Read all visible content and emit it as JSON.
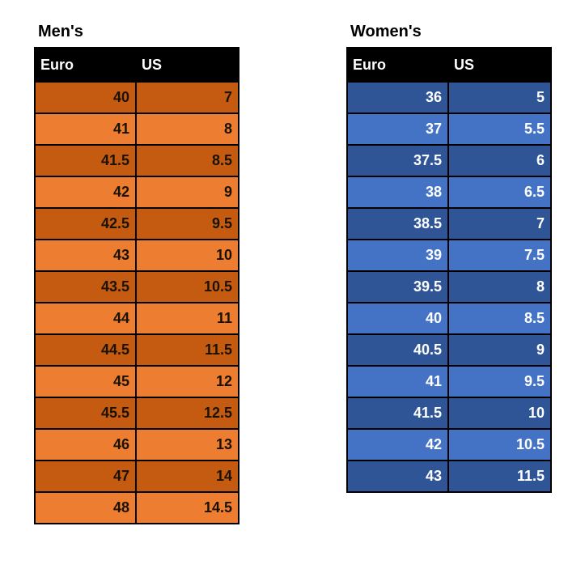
{
  "canvas": {
    "background": "#FFFFFF"
  },
  "colors": {
    "title_text": "#000000",
    "border": "#000000",
    "header_bg": "#000000",
    "header_text": "#FFFFFF",
    "mens_row_dark": "#C55A11",
    "mens_row_light": "#ED7D31",
    "mens_text": "#1A1200",
    "womens_row_dark": "#2F5597",
    "womens_row_light": "#4472C4",
    "womens_text": "#FFFFFF"
  },
  "chart_data": [
    {
      "type": "table",
      "title": "Men's",
      "columns": [
        "Euro",
        "US"
      ],
      "rows": [
        [
          "40",
          "7"
        ],
        [
          "41",
          "8"
        ],
        [
          "41.5",
          "8.5"
        ],
        [
          "42",
          "9"
        ],
        [
          "42.5",
          "9.5"
        ],
        [
          "43",
          "10"
        ],
        [
          "43.5",
          "10.5"
        ],
        [
          "44",
          "11"
        ],
        [
          "44.5",
          "11.5"
        ],
        [
          "45",
          "12"
        ],
        [
          "45.5",
          "12.5"
        ],
        [
          "46",
          "13"
        ],
        [
          "47",
          "14"
        ],
        [
          "48",
          "14.5"
        ]
      ]
    },
    {
      "type": "table",
      "title": "Women's",
      "columns": [
        "Euro",
        "US"
      ],
      "rows": [
        [
          "36",
          "5"
        ],
        [
          "37",
          "5.5"
        ],
        [
          "37.5",
          "6"
        ],
        [
          "38",
          "6.5"
        ],
        [
          "38.5",
          "7"
        ],
        [
          "39",
          "7.5"
        ],
        [
          "39.5",
          "8"
        ],
        [
          "40",
          "8.5"
        ],
        [
          "40.5",
          "9"
        ],
        [
          "41",
          "9.5"
        ],
        [
          "41.5",
          "10"
        ],
        [
          "42",
          "10.5"
        ],
        [
          "43",
          "11.5"
        ]
      ]
    }
  ]
}
